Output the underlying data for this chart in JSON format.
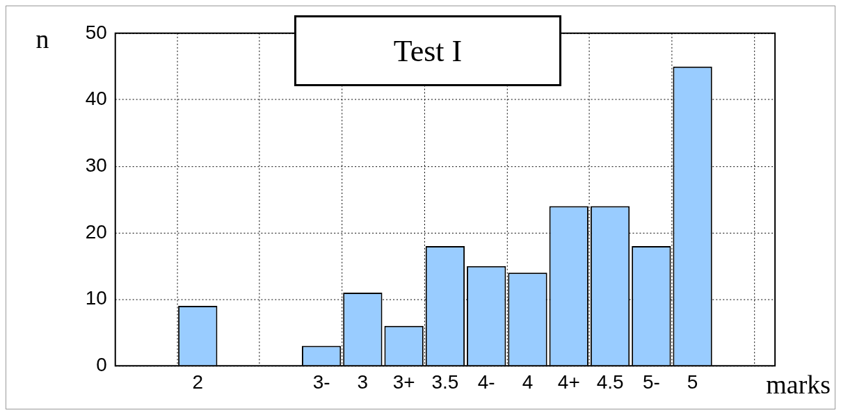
{
  "chart_data": {
    "type": "bar",
    "title": "Test I",
    "xlabel": "marks",
    "ylabel": "n",
    "categories": [
      null,
      null,
      "2",
      null,
      null,
      "3-",
      "3",
      "3+",
      "3.5",
      "4-",
      "4",
      "4+",
      "4.5",
      "5-",
      "5",
      null,
      null
    ],
    "values": [
      null,
      null,
      9,
      null,
      null,
      3,
      11,
      6,
      18,
      15,
      14,
      24,
      24,
      18,
      45,
      null,
      null
    ],
    "color": "#99ccff",
    "ylim": [
      0,
      50
    ],
    "yticks": [
      0,
      10,
      20,
      30,
      40,
      50
    ],
    "grid": true,
    "legend": false
  }
}
